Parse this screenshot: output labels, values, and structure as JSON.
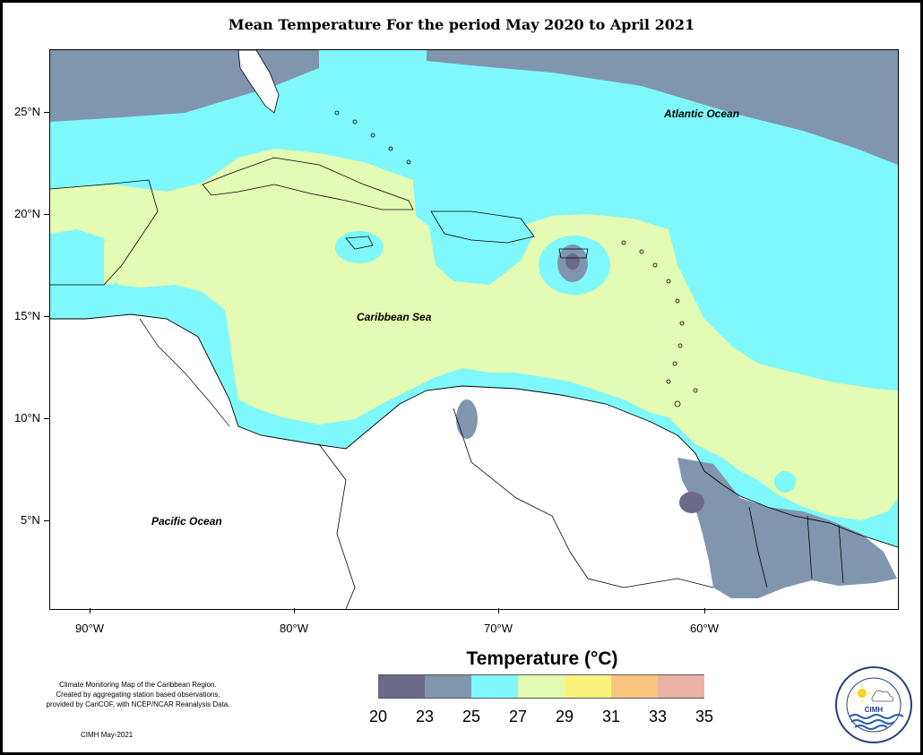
{
  "title": "Mean Temperature For the period May 2020 to April 2021",
  "axes": {
    "lat_ticks": [
      {
        "label": "25°N",
        "value": 25
      },
      {
        "label": "20°N",
        "value": 20
      },
      {
        "label": "15°N",
        "value": 15
      },
      {
        "label": "10°N",
        "value": 10
      },
      {
        "label": "5°N",
        "value": 5
      }
    ],
    "lon_ticks": [
      {
        "label": "90°W",
        "value": -90
      },
      {
        "label": "80°W",
        "value": -80
      },
      {
        "label": "70°W",
        "value": -70
      },
      {
        "label": "60°W",
        "value": -60
      }
    ]
  },
  "labels": {
    "atlantic": "Atlantic Ocean",
    "caribbean": "Caribbean Sea",
    "pacific": "Pacific Ocean"
  },
  "legend": {
    "title": "Temperature (°C)",
    "ticks": [
      "20",
      "23",
      "25",
      "27",
      "29",
      "31",
      "33",
      "35"
    ],
    "colors": [
      "#6b6a8a",
      "#7f96ae",
      "#7ff8fb",
      "#e4fbb3",
      "#fbf47a",
      "#f9c57e",
      "#ebb1a4"
    ]
  },
  "credits": {
    "line1": "Climate Monitoring Map of the Caribbean Region.",
    "line2": "Created by aggregating station based observations,",
    "line3": "provided by CariCOF, with NCEP/NCAR Reanalysis Data.",
    "footer": "CIMH May-2021"
  },
  "logo": {
    "text": "CIMH",
    "ring_text": "Caribbean Institute for Meteorology and Hydrology"
  }
}
